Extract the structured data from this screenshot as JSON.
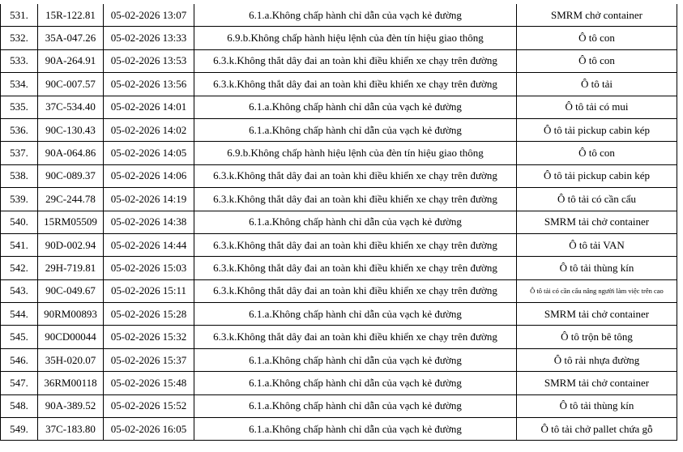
{
  "rows": [
    {
      "no": "531.",
      "plate": "15R-122.81",
      "time": "05-02-2026 13:07",
      "violation": "6.1.a.Không chấp hành chỉ dẫn của vạch kẻ đường",
      "vehicle": "SMRM chở container"
    },
    {
      "no": "532.",
      "plate": "35A-047.26",
      "time": "05-02-2026 13:33",
      "violation": "6.9.b.Không chấp hành hiệu lệnh của đèn tín hiệu giao thông",
      "vehicle": "Ô tô con"
    },
    {
      "no": "533.",
      "plate": "90A-264.91",
      "time": "05-02-2026 13:53",
      "violation": "6.3.k.Không thắt dây đai an toàn khi điều khiển xe chạy trên đường",
      "vehicle": "Ô tô con"
    },
    {
      "no": "534.",
      "plate": "90C-007.57",
      "time": "05-02-2026 13:56",
      "violation": "6.3.k.Không thắt dây đai an toàn khi điều khiển xe chạy trên đường",
      "vehicle": "Ô tô tải"
    },
    {
      "no": "535.",
      "plate": "37C-534.40",
      "time": "05-02-2026 14:01",
      "violation": "6.1.a.Không chấp hành chỉ dẫn của vạch kẻ đường",
      "vehicle": "Ô tô tải có mui"
    },
    {
      "no": "536.",
      "plate": "90C-130.43",
      "time": "05-02-2026 14:02",
      "violation": "6.1.a.Không chấp hành chỉ dẫn của vạch kẻ đường",
      "vehicle": "Ô tô tải pickup cabin kép"
    },
    {
      "no": "537.",
      "plate": "90A-064.86",
      "time": "05-02-2026 14:05",
      "violation": "6.9.b.Không chấp hành hiệu lệnh của đèn tín hiệu giao thông",
      "vehicle": "Ô tô con"
    },
    {
      "no": "538.",
      "plate": "90C-089.37",
      "time": "05-02-2026 14:06",
      "violation": "6.3.k.Không thắt dây đai an toàn khi điều khiển xe chạy trên đường",
      "vehicle": "Ô tô tải pickup cabin kép"
    },
    {
      "no": "539.",
      "plate": "29C-244.78",
      "time": "05-02-2026 14:19",
      "violation": "6.3.k.Không thắt dây đai an toàn khi điều khiển xe chạy trên đường",
      "vehicle": "Ô tô tải có cần cẩu"
    },
    {
      "no": "540.",
      "plate": "15RM05509",
      "time": "05-02-2026 14:38",
      "violation": "6.1.a.Không chấp hành chỉ dẫn của vạch kẻ đường",
      "vehicle": "SMRM tải chở container"
    },
    {
      "no": "541.",
      "plate": "90D-002.94",
      "time": "05-02-2026 14:44",
      "violation": "6.3.k.Không thắt dây đai an toàn khi điều khiển xe chạy trên đường",
      "vehicle": "Ô tô tải VAN"
    },
    {
      "no": "542.",
      "plate": "29H-719.81",
      "time": "05-02-2026 15:03",
      "violation": "6.3.k.Không thắt dây đai an toàn khi điều khiển xe chạy trên đường",
      "vehicle": "Ô tô tải thùng kín"
    },
    {
      "no": "543.",
      "plate": "90C-049.67",
      "time": "05-02-2026 15:11",
      "violation": "6.3.k.Không thắt dây đai an toàn khi điều khiển xe chạy trên đường",
      "vehicle": "Ô tô tải có cần cẩu nâng người làm việc trên cao"
    },
    {
      "no": "544.",
      "plate": "90RM00893",
      "time": "05-02-2026 15:28",
      "violation": "6.1.a.Không chấp hành chỉ dẫn của vạch kẻ đường",
      "vehicle": "SMRM tải chở container"
    },
    {
      "no": "545.",
      "plate": "90CD00044",
      "time": "05-02-2026 15:32",
      "violation": "6.3.k.Không thắt dây đai an toàn khi điều khiển xe chạy trên đường",
      "vehicle": "Ô tô trộn bê tông"
    },
    {
      "no": "546.",
      "plate": "35H-020.07",
      "time": "05-02-2026 15:37",
      "violation": "6.1.a.Không chấp hành chỉ dẫn của vạch kẻ đường",
      "vehicle": "Ô tô rải nhựa đường"
    },
    {
      "no": "547.",
      "plate": "36RM00118",
      "time": "05-02-2026 15:48",
      "violation": "6.1.a.Không chấp hành chỉ dẫn của vạch kẻ đường",
      "vehicle": "SMRM tải chở container"
    },
    {
      "no": "548.",
      "plate": "90A-389.52",
      "time": "05-02-2026 15:52",
      "violation": "6.1.a.Không chấp hành chỉ dẫn của vạch kẻ đường",
      "vehicle": "Ô tô tải thùng kín"
    },
    {
      "no": "549.",
      "plate": "37C-183.80",
      "time": "05-02-2026 16:05",
      "violation": "6.1.a.Không chấp hành chỉ dẫn của vạch kẻ đường",
      "vehicle": "Ô tô tải chở pallet chứa gỗ"
    }
  ]
}
